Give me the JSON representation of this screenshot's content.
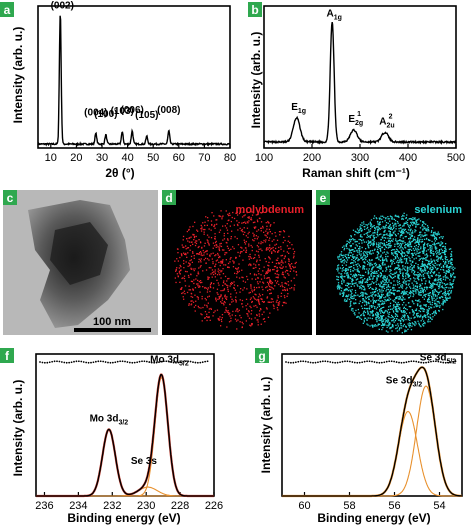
{
  "colors": {
    "badge": "#2fa84f",
    "molybdenum": "#e8202a",
    "selenium": "#2ad4d4",
    "fit_envelope": "#c0392b",
    "fit_component": "#e8912e",
    "data_line": "#000000"
  },
  "panels": {
    "a": {
      "label": "a"
    },
    "b": {
      "label": "b"
    },
    "c": {
      "label": "c",
      "scalebar": "100 nm"
    },
    "d": {
      "label": "d",
      "element": "molybdenum"
    },
    "e": {
      "label": "e",
      "element": "selenium"
    },
    "f": {
      "label": "f"
    },
    "g": {
      "label": "g"
    }
  },
  "chart_data": [
    {
      "id": "a",
      "type": "line",
      "xlabel": "2θ (°)",
      "ylabel": "Intensity (arb. u.)",
      "xlim": [
        5,
        80
      ],
      "xticks": [
        10,
        20,
        30,
        40,
        50,
        60,
        70,
        80
      ],
      "yticks_shown": false,
      "peaks": [
        {
          "x": 13.7,
          "y": 100,
          "label": "(002)"
        },
        {
          "x": 27.6,
          "y": 8,
          "label": "(004)"
        },
        {
          "x": 31.5,
          "y": 7,
          "label": "(100)"
        },
        {
          "x": 37.9,
          "y": 9,
          "label": "(103)"
        },
        {
          "x": 41.8,
          "y": 10,
          "label": "(006)"
        },
        {
          "x": 47.5,
          "y": 6,
          "label": "(105)"
        },
        {
          "x": 56.1,
          "y": 10,
          "label": "(008)"
        }
      ],
      "baseline": 3
    },
    {
      "id": "b",
      "type": "line",
      "xlabel": "Raman shift (cm⁻¹)",
      "ylabel": "Intensity (arb. u.)",
      "xlim": [
        100,
        500
      ],
      "xticks": [
        100,
        200,
        300,
        400,
        500
      ],
      "yticks_shown": false,
      "peaks": [
        {
          "x": 168,
          "y": 20,
          "label": "E",
          "sub": "1g",
          "sup": ""
        },
        {
          "x": 242,
          "y": 100,
          "label": "A",
          "sub": "1g",
          "sup": ""
        },
        {
          "x": 287,
          "y": 10,
          "label": "E",
          "sub": "2g",
          "sup": "1"
        },
        {
          "x": 352,
          "y": 8,
          "label": "A",
          "sub": "2u",
          "sup": "2"
        }
      ],
      "baseline": 5
    },
    {
      "id": "f",
      "type": "line",
      "xlabel": "Binding energy (eV)",
      "ylabel": "Intensity (arb. u.)",
      "xlim": [
        236.5,
        226
      ],
      "xticks": [
        236,
        234,
        232,
        230,
        228,
        226
      ],
      "yticks_shown": false,
      "peaks": [
        {
          "x": 232.2,
          "y": 45,
          "label": "Mo 3d",
          "sub": "3/2"
        },
        {
          "x": 229.9,
          "y": 6,
          "label": "Se 3s",
          "sub": ""
        },
        {
          "x": 229.1,
          "y": 80,
          "label": "Mo 3d",
          "sub": "5/2"
        }
      ],
      "residual": "dotted line at top"
    },
    {
      "id": "g",
      "type": "line",
      "xlabel": "Binding energy (eV)",
      "ylabel": "Intensity (arb. u.)",
      "xlim": [
        61,
        53
      ],
      "xticks": [
        60,
        58,
        56,
        54
      ],
      "yticks_shown": false,
      "peaks": [
        {
          "x": 55.4,
          "y": 50,
          "label": "Se 3d",
          "sub": "3/2"
        },
        {
          "x": 54.6,
          "y": 65,
          "label": "Se 3d",
          "sub": "5/2"
        }
      ],
      "residual": "dotted line at top"
    }
  ]
}
